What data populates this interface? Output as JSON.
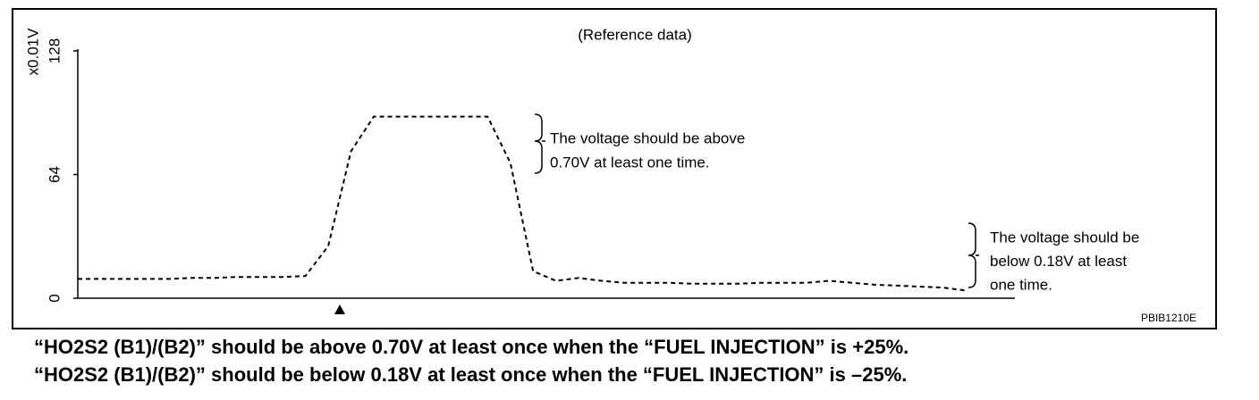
{
  "chart_data": {
    "type": "line",
    "title": "(Reference data)",
    "y_label": "x0.01V",
    "categories": [
      null,
      null,
      null,
      null,
      null,
      null,
      null,
      null,
      null,
      null,
      null,
      null,
      null,
      null,
      null,
      null,
      null,
      null,
      null,
      null,
      null,
      null,
      null,
      null,
      null,
      null,
      null,
      null,
      null,
      null,
      null,
      null,
      null,
      null,
      null,
      null,
      null,
      null,
      null,
      null
    ],
    "values": [
      10,
      10,
      10,
      10,
      10,
      10.5,
      10.5,
      11,
      11,
      11,
      11.5,
      27,
      76,
      94,
      94,
      94,
      94,
      94,
      94,
      70,
      14,
      9,
      10.5,
      9,
      8,
      8,
      8,
      7.5,
      7.5,
      7.5,
      8,
      8,
      8,
      9,
      8,
      7,
      6.5,
      6,
      5.5,
      4
    ],
    "color": "#000000",
    "line_style": "dashed",
    "ylim": [
      0,
      128
    ],
    "yticks": [
      0,
      64,
      128
    ],
    "grid": false,
    "annotations": [
      {
        "lines": [
          "The voltage should be above",
          "0.70V at least one time."
        ]
      },
      {
        "lines": [
          "The voltage should be",
          "below 0.18V at least",
          "one time."
        ]
      }
    ],
    "code": "PBIB1210E"
  },
  "captions": [
    "“HO2S2 (B1)/(B2)” should be above 0.70V at least once when the “FUEL INJECTION” is +25%.",
    "“HO2S2 (B1)/(B2)” should be below 0.18V at least once when the “FUEL INJECTION” is –25%."
  ]
}
